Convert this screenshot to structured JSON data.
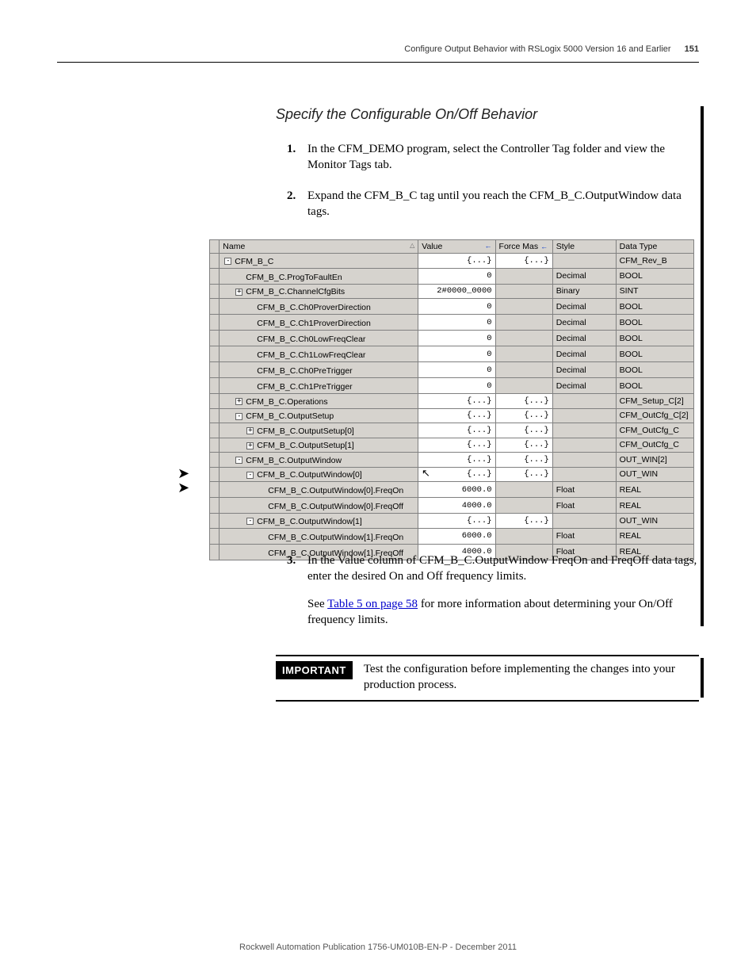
{
  "header": {
    "text": "Configure Output Behavior with RSLogix 5000 Version 16 and Earlier",
    "page": "151"
  },
  "section_title": "Specify the Configurable On/Off Behavior",
  "steps": {
    "s1_num": "1.",
    "s1_text": "In the CFM_DEMO program, select the Controller Tag folder and view the Monitor Tags tab.",
    "s2_num": "2.",
    "s2_text": "Expand the CFM_B_C tag until you reach the CFM_B_C.OutputWindow data tags.",
    "s3_num": "3.",
    "s3_text_a": "In the Value column of CFM_B_C.OutputWindow FreqOn and FreqOff data tags, enter the desired On and Off frequency limits.",
    "s3_text_b_pre": "See ",
    "s3_link": "Table 5 on page 58",
    "s3_text_b_post": " for more information about determining your On/Off frequency limits."
  },
  "important": {
    "label": "IMPORTANT",
    "text": "Test the configuration before implementing the changes into your production process."
  },
  "table": {
    "headers": {
      "name": "Name",
      "value": "Value",
      "force": "Force Mas",
      "style": "Style",
      "type": "Data Type"
    },
    "rows": [
      {
        "indent": 0,
        "toggle": "-",
        "name": "CFM_B_C",
        "value": "{...}",
        "force": "{...}",
        "style": "",
        "type": "CFM_Rev_B",
        "valwhite": true,
        "forcewhite": true
      },
      {
        "indent": 1,
        "toggle": "",
        "name": "CFM_B_C.ProgToFaultEn",
        "value": "0",
        "force": "",
        "style": "Decimal",
        "type": "BOOL",
        "valwhite": true
      },
      {
        "indent": 1,
        "toggle": "+",
        "name": "CFM_B_C.ChannelCfgBits",
        "value": "2#0000_0000",
        "force": "",
        "style": "Binary",
        "type": "SINT",
        "valwhite": true
      },
      {
        "indent": 2,
        "toggle": "",
        "name": "CFM_B_C.Ch0ProverDirection",
        "value": "0",
        "force": "",
        "style": "Decimal",
        "type": "BOOL",
        "valwhite": true
      },
      {
        "indent": 2,
        "toggle": "",
        "name": "CFM_B_C.Ch1ProverDirection",
        "value": "0",
        "force": "",
        "style": "Decimal",
        "type": "BOOL",
        "valwhite": true
      },
      {
        "indent": 2,
        "toggle": "",
        "name": "CFM_B_C.Ch0LowFreqClear",
        "value": "0",
        "force": "",
        "style": "Decimal",
        "type": "BOOL",
        "valwhite": true
      },
      {
        "indent": 2,
        "toggle": "",
        "name": "CFM_B_C.Ch1LowFreqClear",
        "value": "0",
        "force": "",
        "style": "Decimal",
        "type": "BOOL",
        "valwhite": true
      },
      {
        "indent": 2,
        "toggle": "",
        "name": "CFM_B_C.Ch0PreTrigger",
        "value": "0",
        "force": "",
        "style": "Decimal",
        "type": "BOOL",
        "valwhite": true
      },
      {
        "indent": 2,
        "toggle": "",
        "name": "CFM_B_C.Ch1PreTrigger",
        "value": "0",
        "force": "",
        "style": "Decimal",
        "type": "BOOL",
        "valwhite": true
      },
      {
        "indent": 1,
        "toggle": "+",
        "name": "CFM_B_C.Operations",
        "value": "{...}",
        "force": "{...}",
        "style": "",
        "type": "CFM_Setup_C[2]",
        "valwhite": true,
        "forcewhite": true
      },
      {
        "indent": 1,
        "toggle": "-",
        "name": "CFM_B_C.OutputSetup",
        "value": "{...}",
        "force": "{...}",
        "style": "",
        "type": "CFM_OutCfg_C[2]",
        "valwhite": true,
        "forcewhite": true
      },
      {
        "indent": 2,
        "toggle": "+",
        "name": "CFM_B_C.OutputSetup[0]",
        "value": "{...}",
        "force": "{...}",
        "style": "",
        "type": "CFM_OutCfg_C",
        "valwhite": true,
        "forcewhite": true
      },
      {
        "indent": 2,
        "toggle": "+",
        "name": "CFM_B_C.OutputSetup[1]",
        "value": "{...}",
        "force": "{...}",
        "style": "",
        "type": "CFM_OutCfg_C",
        "valwhite": true,
        "forcewhite": true
      },
      {
        "indent": 1,
        "toggle": "-",
        "name": "CFM_B_C.OutputWindow",
        "value": "{...}",
        "force": "{...}",
        "style": "",
        "type": "OUT_WIN[2]",
        "valwhite": true,
        "forcewhite": true
      },
      {
        "indent": 2,
        "toggle": "-",
        "name": "CFM_B_C.OutputWindow[0]",
        "value": "{...}",
        "force": "{...}",
        "style": "",
        "type": "OUT_WIN",
        "valwhite": true,
        "forcewhite": true
      },
      {
        "indent": 3,
        "toggle": "",
        "name": "CFM_B_C.OutputWindow[0].FreqOn",
        "value": "6000.0",
        "force": "",
        "style": "Float",
        "type": "REAL",
        "valwhite": true
      },
      {
        "indent": 3,
        "toggle": "",
        "name": "CFM_B_C.OutputWindow[0].FreqOff",
        "value": "4000.0",
        "force": "",
        "style": "Float",
        "type": "REAL",
        "valwhite": true
      },
      {
        "indent": 2,
        "toggle": "-",
        "name": "CFM_B_C.OutputWindow[1]",
        "value": "{...}",
        "force": "{...}",
        "style": "",
        "type": "OUT_WIN",
        "valwhite": true,
        "forcewhite": true
      },
      {
        "indent": 3,
        "toggle": "",
        "name": "CFM_B_C.OutputWindow[1].FreqOn",
        "value": "6000.0",
        "force": "",
        "style": "Float",
        "type": "REAL",
        "valwhite": true
      },
      {
        "indent": 3,
        "toggle": "",
        "name": "CFM_B_C.OutputWindow[1].FreqOff",
        "value": "4000.0",
        "force": "",
        "style": "Float",
        "type": "REAL",
        "valwhite": true
      }
    ]
  },
  "footer": "Rockwell Automation Publication 1756-UM010B-EN-P - December 2011"
}
